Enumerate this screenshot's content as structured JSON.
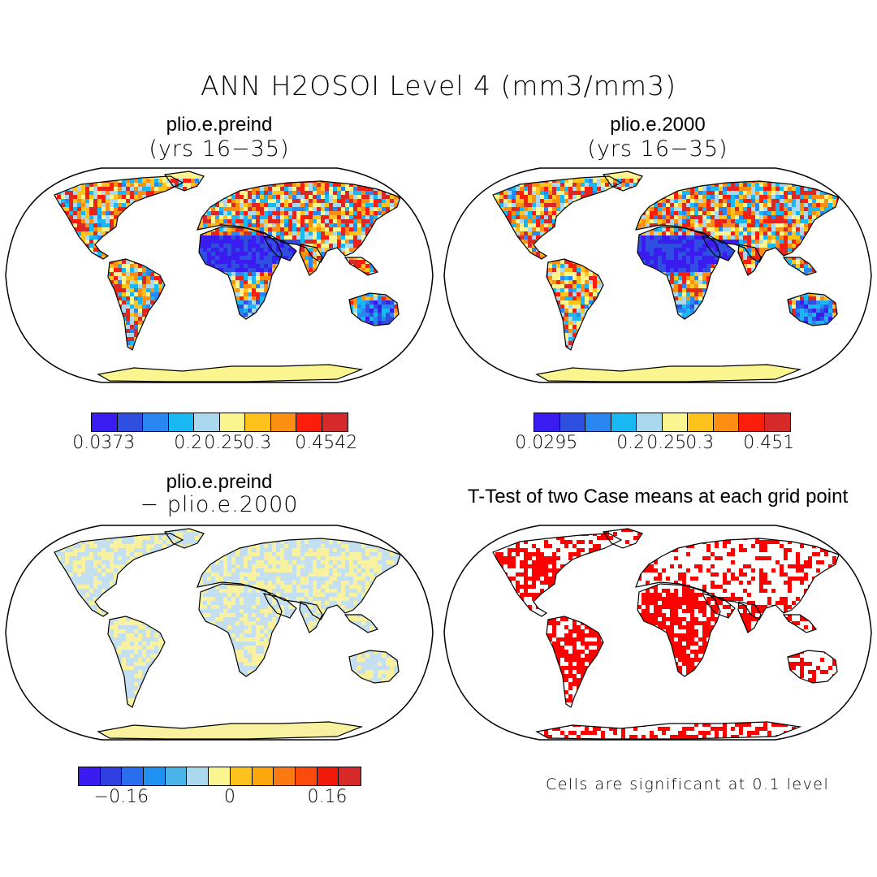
{
  "title": "ANN H2OSOI Level 4 (mm3/mm3)",
  "panels": [
    {
      "id": "preind",
      "title": "plio.e.preind",
      "subtitle": "(yrs 16−35)",
      "kind": "field"
    },
    {
      "id": "y2000",
      "title": "plio.e.2000",
      "subtitle": "(yrs 16−35)",
      "kind": "field"
    },
    {
      "id": "diff",
      "title": "plio.e.preind",
      "subtitle": "− plio.e.2000",
      "kind": "diff"
    },
    {
      "id": "ttest",
      "title": "T-Test of two Case means at each grid point",
      "subtitle": "",
      "kind": "ttest"
    }
  ],
  "colorbars": {
    "preind": {
      "colors": [
        "#3a1cf0",
        "#2f4fe0",
        "#2a86f0",
        "#1ab8f2",
        "#a9d8ef",
        "#fbf590",
        "#fdc21c",
        "#fc8f12",
        "#fc1e0a",
        "#d62a2a"
      ],
      "labels": [
        "0.0373",
        "0.2",
        "0.25",
        "0.3",
        "0.4542"
      ]
    },
    "y2000": {
      "colors": [
        "#3a1cf0",
        "#2f4fe0",
        "#2a86f0",
        "#1ab8f2",
        "#a9d8ef",
        "#fbf590",
        "#fdc21c",
        "#fc8f12",
        "#fc1e0a",
        "#d62a2a"
      ],
      "labels": [
        "0.0295",
        "0.2",
        "0.25",
        "0.3",
        "0.451"
      ]
    },
    "diff": {
      "colors": [
        "#3a1cf0",
        "#2f3fe2",
        "#2a6ef0",
        "#2090f2",
        "#49b4ea",
        "#a9d8ef",
        "#fbf590",
        "#fdc21c",
        "#fda70f",
        "#fc7a12",
        "#fc4a0c",
        "#f01a0a",
        "#d62a2a"
      ],
      "labels": [
        "−0.16",
        "0",
        "0.16"
      ]
    }
  },
  "note": "Cells are significant at 0.1 level",
  "colors": {
    "land_outline": "#000000",
    "sig_red": "#ff0000",
    "diff_blue": "#c3dff0",
    "diff_yellow": "#f8f2a0"
  }
}
